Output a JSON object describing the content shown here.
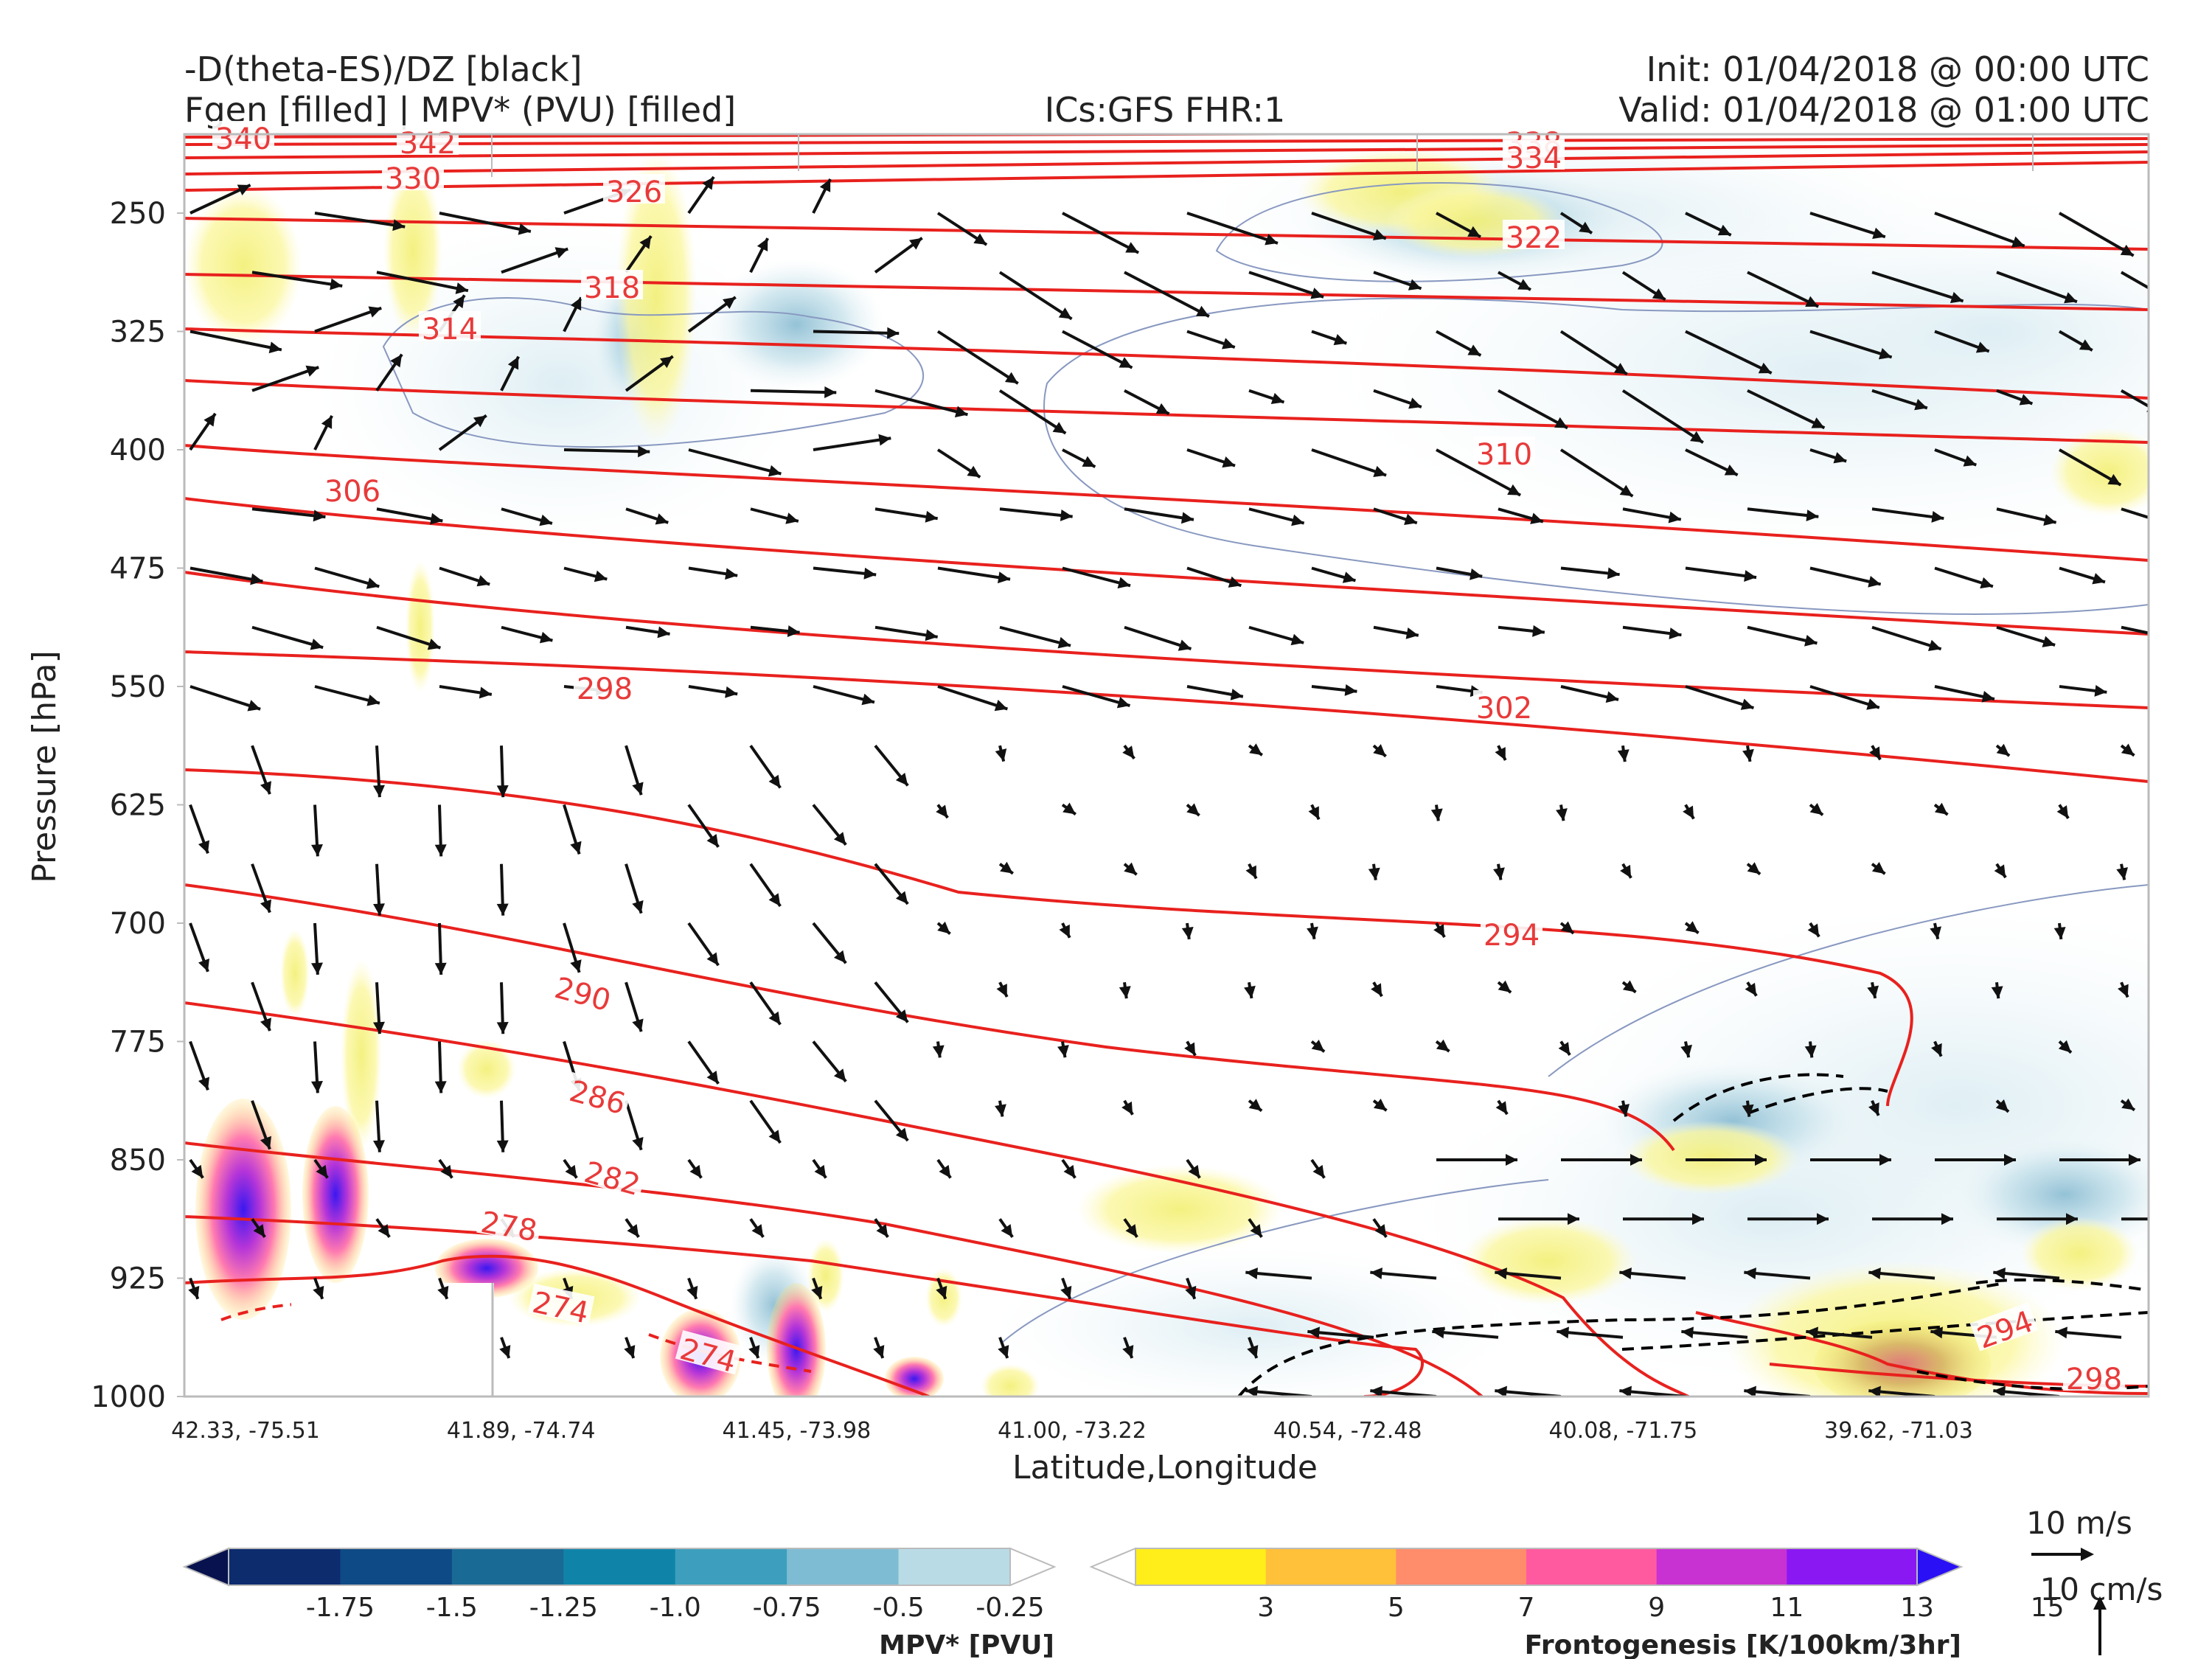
{
  "header": {
    "line1_left": "-D(theta-ES)/DZ [black]",
    "line2_left": "Fgen [filled] | MPV* (PVU) [filled]",
    "center": "ICs:GFS FHR:1",
    "init": "Init: 01/04/2018 @ 00:00 UTC",
    "valid": "Valid: 01/04/2018 @ 01:00 UTC"
  },
  "chart_data": {
    "type": "cross-section",
    "ylabel": "Pressure [hPa]",
    "xlabel": "Latitude,Longitude",
    "y_axis": {
      "scale": "inverted",
      "range": [
        1000,
        200
      ],
      "ticks": [
        250,
        325,
        400,
        475,
        550,
        625,
        700,
        775,
        850,
        925,
        1000
      ]
    },
    "x_ticks": [
      "42.33, -75.51",
      "41.89, -74.74",
      "41.45, -73.98",
      "41.00, -73.22",
      "40.54, -72.48",
      "40.08, -71.75",
      "39.62, -71.03"
    ],
    "theta_e_contour_labels": [
      "340",
      "342",
      "330",
      "326",
      "338",
      "334",
      "322",
      "318",
      "314",
      "310",
      "306",
      "302",
      "298",
      "294",
      "290",
      "286",
      "282",
      "278",
      "274",
      "274",
      "294",
      "298"
    ],
    "theta_e_color": "#e8211e",
    "mpv_colorbar": {
      "title": "MPV* [PVU]",
      "ticks": [
        "-1.75",
        "-1.5",
        "-1.25",
        "-1.0",
        "-0.75",
        "-0.5",
        "-0.25"
      ],
      "colors": [
        "#08124e",
        "#0c2c6e",
        "#0e4a85",
        "#1a6a96",
        "#0f84a8",
        "#3d9fbd",
        "#7ebcd3",
        "#b9dbe6",
        "#ffffff"
      ]
    },
    "fgen_colorbar": {
      "title": "Frontogenesis [K/100km/3hr]",
      "ticks": [
        "3",
        "5",
        "7",
        "9",
        "11",
        "13",
        "15"
      ],
      "colors": [
        "#ffffff",
        "#ffee1a",
        "#ffc03a",
        "#ff8c6a",
        "#ff5aa0",
        "#c832d2",
        "#8a18f2",
        "#2a10f5"
      ]
    },
    "vector_key": {
      "horizontal": "10 m/s",
      "vertical": "10 cm/s"
    }
  }
}
